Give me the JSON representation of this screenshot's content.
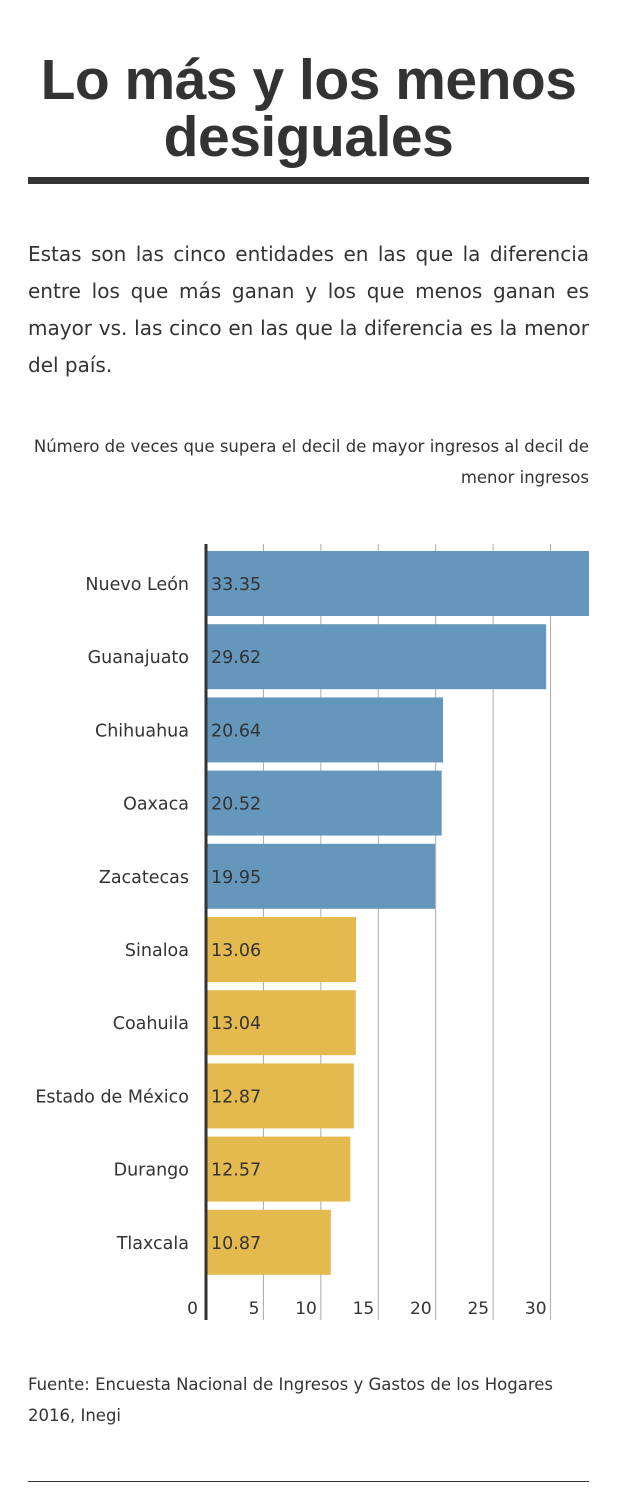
{
  "header": {
    "title": "Lo más y los menos desiguales",
    "intro": "Estas son las cinco entidades en las que la diferencia entre los que más ganan y los que menos ganan es mayor vs. las cinco en las que la diferencia es la menor del país."
  },
  "footer": {
    "source": "Fuente: Encuesta Nacional de Ingresos y Gastos de los Hogares 2016, Inegi"
  },
  "colors": {
    "most_unequal": "#6497bb",
    "least_unequal": "#e4ba4e",
    "text": "#333333",
    "grid": "#aaaaaa"
  },
  "chart_data": {
    "type": "bar",
    "orientation": "horizontal",
    "title": "Número de veces que supera el decil de mayor ingresos al decil de menor ingresos",
    "xlabel": "",
    "ylabel": "",
    "xlim": [
      0,
      33.35
    ],
    "x_ticks": [
      0,
      5,
      10,
      15,
      20,
      25,
      30
    ],
    "grid": true,
    "categories": [
      "Nuevo León",
      "Guanajuato",
      "Chihuahua",
      "Oaxaca",
      "Zacatecas",
      "Sinaloa",
      "Coahuila",
      "Estado de México",
      "Durango",
      "Tlaxcala"
    ],
    "values": [
      33.35,
      29.62,
      20.64,
      20.52,
      19.95,
      13.06,
      13.04,
      12.87,
      12.57,
      10.87
    ],
    "value_labels": [
      "33.35",
      "29.62",
      "20.64",
      "20.52",
      "19.95",
      "13.06",
      "13.04",
      "12.87",
      "12.57",
      "10.87"
    ],
    "groups": [
      "most",
      "most",
      "most",
      "most",
      "most",
      "least",
      "least",
      "least",
      "least",
      "least"
    ]
  }
}
